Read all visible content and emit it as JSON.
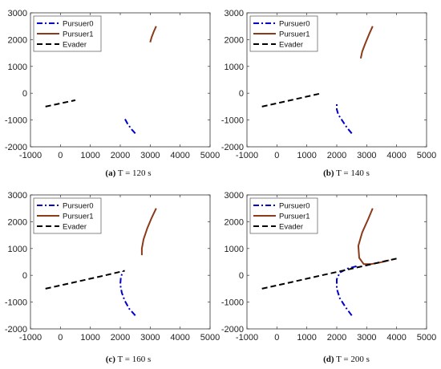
{
  "figure": {
    "background": "#ffffff"
  },
  "legend_entries": [
    {
      "label": "Pursuer0",
      "color": "#0000cc",
      "dash": "dashdot"
    },
    {
      "label": "Pursuer1",
      "color": "#8b3a1a",
      "dash": "solid"
    },
    {
      "label": "Evader",
      "color": "#000000",
      "dash": "dashed"
    }
  ],
  "chart_data": [
    {
      "type": "line",
      "panel_letter": "(a)",
      "caption": "T = 120 s",
      "xlim": [
        -1000,
        5000
      ],
      "ylim": [
        -2000,
        3000
      ],
      "xticks": [
        -1000,
        0,
        1000,
        2000,
        3000,
        4000,
        5000
      ],
      "yticks": [
        -2000,
        -1000,
        0,
        1000,
        2000,
        3000
      ],
      "legend_position": "top-left",
      "series": [
        {
          "name": "Pursuer0",
          "color": "#0000cc",
          "x": [
            2500,
            2380,
            2250,
            2150
          ],
          "y": [
            -1500,
            -1350,
            -1150,
            -950
          ]
        },
        {
          "name": "Pursuer1",
          "color": "#8b3a1a",
          "x": [
            3200,
            3120,
            3050,
            3000
          ],
          "y": [
            2500,
            2300,
            2100,
            1900
          ]
        },
        {
          "name": "Evader",
          "color": "#000000",
          "x": [
            -500,
            0,
            500
          ],
          "y": [
            -500,
            -380,
            -260
          ]
        }
      ]
    },
    {
      "type": "line",
      "panel_letter": "(b)",
      "caption": "T = 140 s",
      "xlim": [
        -1000,
        5000
      ],
      "ylim": [
        -2000,
        3000
      ],
      "xticks": [
        -1000,
        0,
        1000,
        2000,
        3000,
        4000,
        5000
      ],
      "yticks": [
        -2000,
        -1000,
        0,
        1000,
        2000,
        3000
      ],
      "legend_position": "top-left",
      "series": [
        {
          "name": "Pursuer0",
          "color": "#0000cc",
          "x": [
            2500,
            2350,
            2200,
            2050,
            2000,
            2000
          ],
          "y": [
            -1500,
            -1300,
            -1050,
            -800,
            -600,
            -350
          ]
        },
        {
          "name": "Pursuer1",
          "color": "#8b3a1a",
          "x": [
            3200,
            3080,
            2950,
            2850,
            2800
          ],
          "y": [
            2500,
            2200,
            1850,
            1550,
            1300
          ]
        },
        {
          "name": "Evader",
          "color": "#000000",
          "x": [
            -500,
            500,
            1500
          ],
          "y": [
            -500,
            -250,
            0
          ]
        }
      ]
    },
    {
      "type": "line",
      "panel_letter": "(c)",
      "caption": "T = 160 s",
      "xlim": [
        -1000,
        5000
      ],
      "ylim": [
        -2000,
        3000
      ],
      "xticks": [
        -1000,
        0,
        1000,
        2000,
        3000,
        4000,
        5000
      ],
      "yticks": [
        -2000,
        -1000,
        0,
        1000,
        2000,
        3000
      ],
      "legend_position": "top-left",
      "series": [
        {
          "name": "Pursuer0",
          "color": "#0000cc",
          "x": [
            2500,
            2300,
            2150,
            2050,
            2000,
            2020,
            2080
          ],
          "y": [
            -1500,
            -1250,
            -950,
            -650,
            -350,
            -100,
            150
          ]
        },
        {
          "name": "Pursuer1",
          "color": "#8b3a1a",
          "x": [
            3200,
            3050,
            2900,
            2780,
            2720,
            2720
          ],
          "y": [
            2500,
            2150,
            1750,
            1350,
            1000,
            750
          ]
        },
        {
          "name": "Evader",
          "color": "#000000",
          "x": [
            -500,
            500,
            1500,
            2150
          ],
          "y": [
            -500,
            -250,
            0,
            170
          ]
        }
      ]
    },
    {
      "type": "line",
      "panel_letter": "(d)",
      "caption": "T = 200 s",
      "xlim": [
        -1000,
        5000
      ],
      "ylim": [
        -2000,
        3000
      ],
      "xticks": [
        -1000,
        0,
        1000,
        2000,
        3000,
        4000,
        5000
      ],
      "yticks": [
        -2000,
        -1000,
        0,
        1000,
        2000,
        3000
      ],
      "legend_position": "top-left",
      "series": [
        {
          "name": "Pursuer0",
          "color": "#0000cc",
          "x": [
            2500,
            2300,
            2100,
            2000,
            2000,
            2100,
            2350,
            2700
          ],
          "y": [
            -1500,
            -1200,
            -850,
            -500,
            -150,
            100,
            250,
            350
          ]
        },
        {
          "name": "Pursuer1",
          "color": "#8b3a1a",
          "x": [
            3200,
            3050,
            2850,
            2720,
            2750,
            2900,
            3150,
            3450,
            3750
          ],
          "y": [
            2500,
            2100,
            1600,
            1100,
            650,
            420,
            420,
            480,
            560
          ]
        },
        {
          "name": "Evader",
          "color": "#000000",
          "x": [
            -500,
            500,
            1500,
            2500,
            3500,
            4100
          ],
          "y": [
            -500,
            -250,
            0,
            250,
            500,
            650
          ]
        }
      ]
    }
  ]
}
